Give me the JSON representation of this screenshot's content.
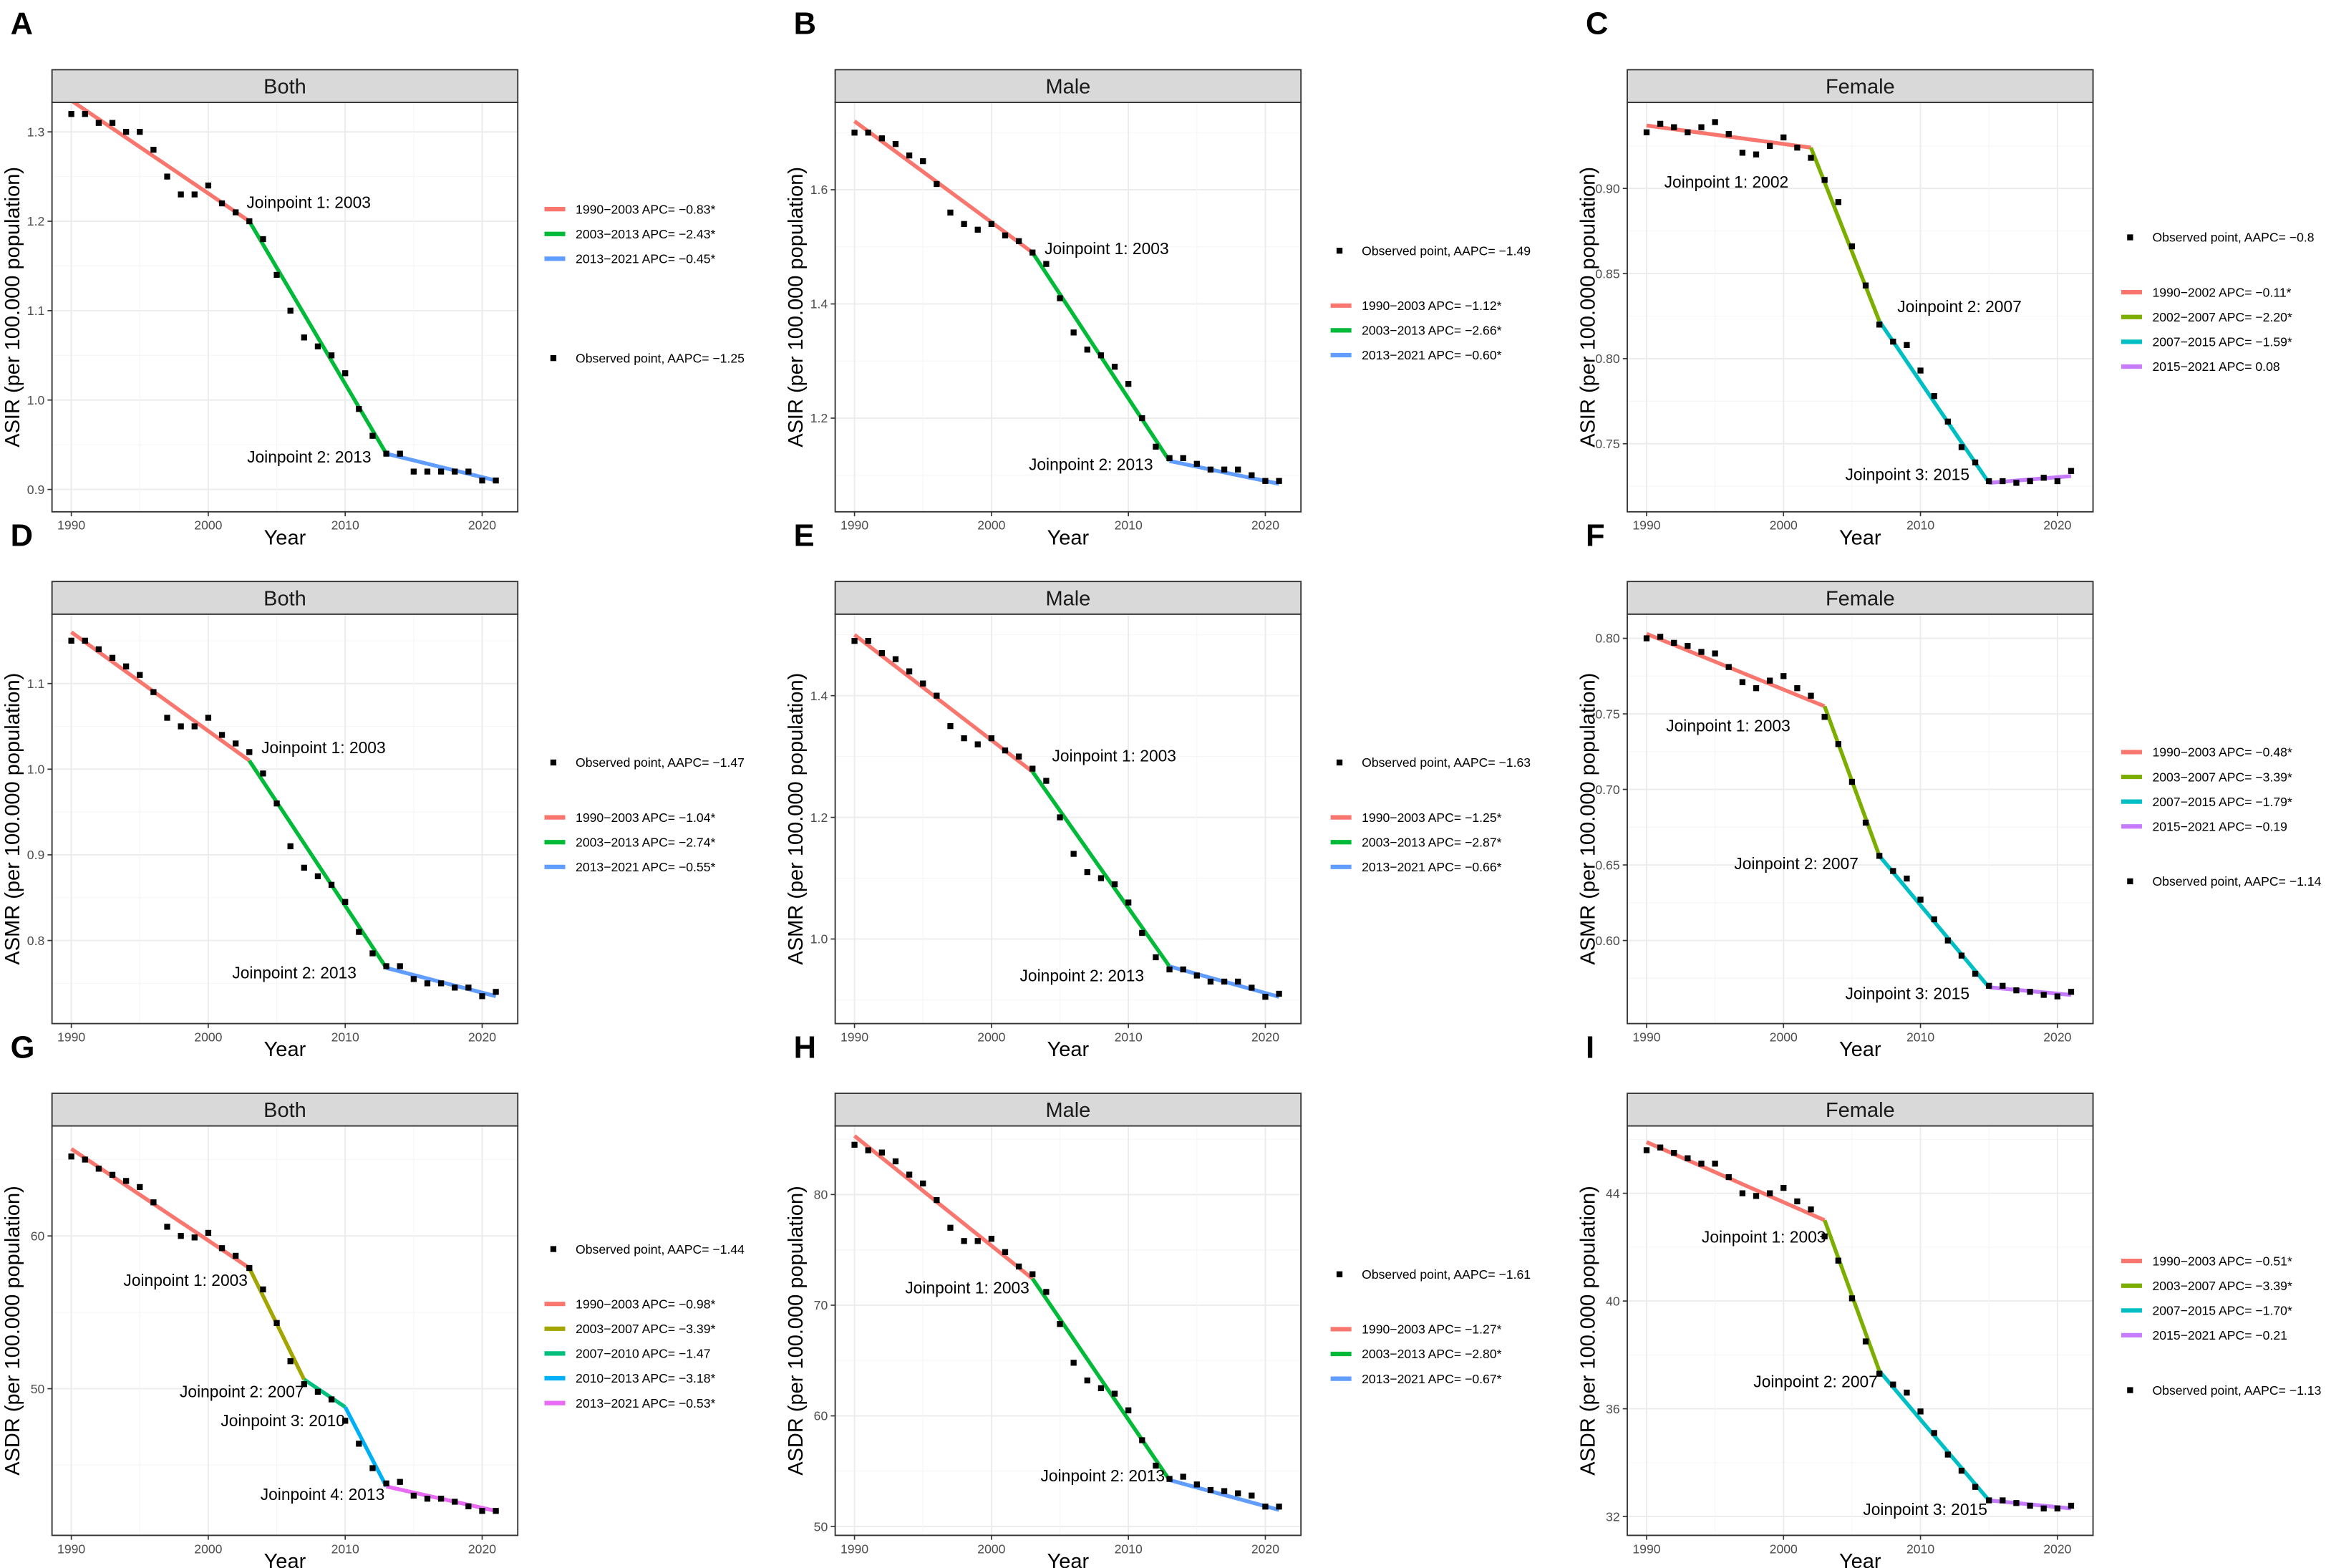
{
  "chart_data": [
    {
      "letter": "A",
      "type": "line",
      "strip": "Both",
      "xlabel": "Year",
      "ylabel": "ASIR (per 100.000 population)",
      "ylim": [
        0.875,
        1.333
      ],
      "yticks": [
        0.9,
        1.0,
        1.1,
        1.2,
        1.3
      ],
      "ytick_labels": [
        "0.9",
        "1.0",
        "1.1",
        "1.2",
        "1.3"
      ],
      "xticks": [
        1990,
        2000,
        2010,
        2020
      ],
      "xtick_labels": [
        "1990",
        "2000",
        "2010",
        "2020"
      ],
      "legend_order": "segments-first",
      "observed_legend": "Observed point, AAPC= −1.25",
      "observed": [
        1.32,
        1.32,
        1.31,
        1.31,
        1.3,
        1.3,
        1.28,
        1.25,
        1.23,
        1.23,
        1.24,
        1.22,
        1.21,
        1.2,
        1.18,
        1.14,
        1.1,
        1.07,
        1.06,
        1.05,
        1.03,
        0.99,
        0.96,
        0.94,
        0.94,
        0.92,
        0.92,
        0.92,
        0.92,
        0.92,
        0.91,
        0.91
      ],
      "segments": [
        {
          "label": "1990−2003 APC= −0.83*",
          "x": [
            1990,
            2003
          ],
          "y": [
            1.335,
            1.2
          ],
          "color": "#F8766D"
        },
        {
          "label": "2003−2013 APC= −2.43*",
          "x": [
            2003,
            2013
          ],
          "y": [
            1.2,
            0.94
          ],
          "color": "#00BA38"
        },
        {
          "label": "2013−2021 APC= −0.45*",
          "x": [
            2013,
            2021
          ],
          "y": [
            0.94,
            0.91
          ],
          "color": "#619CFF"
        }
      ],
      "joinpoints": [
        "Joinpoint 1: 2003",
        "Joinpoint 2: 2013"
      ]
    },
    {
      "letter": "B",
      "type": "line",
      "strip": "Male",
      "xlabel": "Year",
      "ylabel": "ASIR (per 100.000 population)",
      "ylim": [
        1.036,
        1.753
      ],
      "yticks": [
        1.2,
        1.4,
        1.6
      ],
      "ytick_labels": [
        "1.2",
        "1.4",
        "1.6"
      ],
      "xticks": [
        1990,
        2000,
        2010,
        2020
      ],
      "xtick_labels": [
        "1990",
        "2000",
        "2010",
        "2020"
      ],
      "legend_order": "observed-first",
      "observed_legend": "Observed point, AAPC= −1.49",
      "observed": [
        1.7,
        1.7,
        1.69,
        1.68,
        1.66,
        1.65,
        1.61,
        1.56,
        1.54,
        1.53,
        1.54,
        1.52,
        1.51,
        1.49,
        1.47,
        1.41,
        1.35,
        1.32,
        1.31,
        1.29,
        1.26,
        1.2,
        1.15,
        1.13,
        1.13,
        1.12,
        1.11,
        1.11,
        1.11,
        1.1,
        1.09,
        1.09
      ],
      "segments": [
        {
          "label": "1990−2003 APC= −1.12*",
          "x": [
            1990,
            2003
          ],
          "y": [
            1.72,
            1.49
          ],
          "color": "#F8766D"
        },
        {
          "label": "2003−2013 APC= −2.66*",
          "x": [
            2003,
            2013
          ],
          "y": [
            1.49,
            1.125
          ],
          "color": "#00BA38"
        },
        {
          "label": "2013−2021 APC= −0.60*",
          "x": [
            2013,
            2021
          ],
          "y": [
            1.125,
            1.085
          ],
          "color": "#619CFF"
        }
      ],
      "joinpoints": [
        "Joinpoint 1: 2003",
        "Joinpoint 2: 2013"
      ]
    },
    {
      "letter": "C",
      "type": "line",
      "strip": "Female",
      "xlabel": "Year",
      "ylabel": "ASIR (per 100.000 population)",
      "ylim": [
        0.71,
        0.9506
      ],
      "yticks": [
        0.75,
        0.8,
        0.85,
        0.9
      ],
      "ytick_labels": [
        "0.75",
        "0.80",
        "0.85",
        "0.90"
      ],
      "xticks": [
        1990,
        2000,
        2010,
        2020
      ],
      "xtick_labels": [
        "1990",
        "2000",
        "2010",
        "2020"
      ],
      "legend_order": "observed-first",
      "observed_legend": "Observed point, AAPC= −0.8",
      "observed": [
        0.933,
        0.938,
        0.936,
        0.933,
        0.936,
        0.939,
        0.932,
        0.921,
        0.92,
        0.925,
        0.93,
        0.924,
        0.918,
        0.905,
        0.892,
        0.866,
        0.843,
        0.82,
        0.81,
        0.808,
        0.793,
        0.778,
        0.763,
        0.748,
        0.739,
        0.728,
        0.728,
        0.727,
        0.728,
        0.73,
        0.728,
        0.734
      ],
      "segments": [
        {
          "label": "1990−2002 APC= −0.11*",
          "x": [
            1990,
            2002
          ],
          "y": [
            0.937,
            0.924
          ],
          "color": "#F8766D"
        },
        {
          "label": "2002−2007 APC= −2.20*",
          "x": [
            2002,
            2007
          ],
          "y": [
            0.924,
            0.822
          ],
          "color": "#7CAE00"
        },
        {
          "label": "2007−2015 APC= −1.59*",
          "x": [
            2007,
            2015
          ],
          "y": [
            0.822,
            0.727
          ],
          "color": "#00BFC4"
        },
        {
          "label": "2015−2021 APC= 0.08",
          "x": [
            2015,
            2021
          ],
          "y": [
            0.727,
            0.731
          ],
          "color": "#C77CFF"
        }
      ],
      "joinpoints": [
        "Joinpoint 1: 2002",
        "Joinpoint 2: 2007",
        "Joinpoint 3: 2015"
      ]
    },
    {
      "letter": "D",
      "type": "line",
      "strip": "Both",
      "xlabel": "Year",
      "ylabel": "ASMR (per 100.000 population)",
      "ylim": [
        0.703,
        1.181
      ],
      "yticks": [
        0.8,
        0.9,
        1.0,
        1.1
      ],
      "ytick_labels": [
        "0.8",
        "0.9",
        "1.0",
        "1.1"
      ],
      "xticks": [
        1990,
        2000,
        2010,
        2020
      ],
      "xtick_labels": [
        "1990",
        "2000",
        "2010",
        "2020"
      ],
      "legend_order": "observed-first",
      "observed_legend": "Observed point, AAPC= −1.47",
      "observed": [
        1.15,
        1.15,
        1.14,
        1.13,
        1.12,
        1.11,
        1.09,
        1.06,
        1.05,
        1.05,
        1.06,
        1.04,
        1.03,
        1.02,
        0.995,
        0.96,
        0.91,
        0.885,
        0.875,
        0.865,
        0.845,
        0.81,
        0.785,
        0.77,
        0.77,
        0.755,
        0.75,
        0.75,
        0.745,
        0.745,
        0.735,
        0.74
      ],
      "segments": [
        {
          "label": "1990−2003 APC= −1.04*",
          "x": [
            1990,
            2003
          ],
          "y": [
            1.16,
            1.01
          ],
          "color": "#F8766D"
        },
        {
          "label": "2003−2013 APC= −2.74*",
          "x": [
            2003,
            2013
          ],
          "y": [
            1.01,
            0.768
          ],
          "color": "#00BA38"
        },
        {
          "label": "2013−2021 APC= −0.55*",
          "x": [
            2013,
            2021
          ],
          "y": [
            0.768,
            0.735
          ],
          "color": "#619CFF"
        }
      ],
      "joinpoints": [
        "Joinpoint 1: 2003",
        "Joinpoint 2: 2013"
      ]
    },
    {
      "letter": "E",
      "type": "line",
      "strip": "Male",
      "xlabel": "Year",
      "ylabel": "ASMR (per 100.000 population)",
      "ylim": [
        0.861,
        1.534
      ],
      "yticks": [
        1.0,
        1.2,
        1.4
      ],
      "ytick_labels": [
        "1.0",
        "1.2",
        "1.4"
      ],
      "xticks": [
        1990,
        2000,
        2010,
        2020
      ],
      "xtick_labels": [
        "1990",
        "2000",
        "2010",
        "2020"
      ],
      "legend_order": "observed-first",
      "observed_legend": "Observed point, AAPC= −1.63",
      "observed": [
        1.49,
        1.49,
        1.47,
        1.46,
        1.44,
        1.42,
        1.4,
        1.35,
        1.33,
        1.32,
        1.33,
        1.31,
        1.3,
        1.28,
        1.26,
        1.2,
        1.14,
        1.11,
        1.1,
        1.09,
        1.06,
        1.01,
        0.97,
        0.95,
        0.95,
        0.94,
        0.93,
        0.93,
        0.93,
        0.92,
        0.905,
        0.91
      ],
      "segments": [
        {
          "label": "1990−2003 APC= −1.25*",
          "x": [
            1990,
            2003
          ],
          "y": [
            1.5,
            1.275
          ],
          "color": "#F8766D"
        },
        {
          "label": "2003−2013 APC= −2.87*",
          "x": [
            2003,
            2013
          ],
          "y": [
            1.275,
            0.955
          ],
          "color": "#00BA38"
        },
        {
          "label": "2013−2021 APC= −0.66*",
          "x": [
            2013,
            2021
          ],
          "y": [
            0.955,
            0.905
          ],
          "color": "#619CFF"
        }
      ],
      "joinpoints": [
        "Joinpoint 1: 2003",
        "Joinpoint 2: 2013"
      ]
    },
    {
      "letter": "F",
      "type": "line",
      "strip": "Female",
      "xlabel": "Year",
      "ylabel": "ASMR (per 100.000 population)",
      "ylim": [
        0.545,
        0.816
      ],
      "yticks": [
        0.6,
        0.65,
        0.7,
        0.75,
        0.8
      ],
      "ytick_labels": [
        "0.60",
        "0.65",
        "0.70",
        "0.75",
        "0.80"
      ],
      "xticks": [
        1990,
        2000,
        2010,
        2020
      ],
      "xtick_labels": [
        "1990",
        "2000",
        "2010",
        "2020"
      ],
      "legend_order": "segments-first",
      "observed_legend": "Observed point, AAPC= −1.14",
      "observed": [
        0.8,
        0.801,
        0.797,
        0.795,
        0.791,
        0.79,
        0.781,
        0.771,
        0.767,
        0.772,
        0.775,
        0.767,
        0.762,
        0.748,
        0.73,
        0.705,
        0.678,
        0.656,
        0.646,
        0.641,
        0.627,
        0.614,
        0.6,
        0.59,
        0.578,
        0.57,
        0.57,
        0.567,
        0.566,
        0.564,
        0.563,
        0.566
      ],
      "segments": [
        {
          "label": "1990−2003 APC= −0.48*",
          "x": [
            1990,
            2003
          ],
          "y": [
            0.803,
            0.755
          ],
          "color": "#F8766D"
        },
        {
          "label": "2003−2007 APC= −3.39*",
          "x": [
            2003,
            2007
          ],
          "y": [
            0.755,
            0.656
          ],
          "color": "#7CAE00"
        },
        {
          "label": "2007−2015 APC= −1.79*",
          "x": [
            2007,
            2015
          ],
          "y": [
            0.656,
            0.569
          ],
          "color": "#00BFC4"
        },
        {
          "label": "2015−2021 APC= −0.19",
          "x": [
            2015,
            2021
          ],
          "y": [
            0.569,
            0.564
          ],
          "color": "#C77CFF"
        }
      ],
      "joinpoints": [
        "Joinpoint 1: 2003",
        "Joinpoint 2: 2007",
        "Joinpoint 3: 2015"
      ]
    },
    {
      "letter": "G",
      "type": "line",
      "strip": "Both",
      "xlabel": "Year",
      "ylabel": "ASDR (per 100.000 population)",
      "ylim": [
        40.4,
        67.2
      ],
      "yticks": [
        50,
        60
      ],
      "ytick_labels": [
        "50",
        "60"
      ],
      "xticks": [
        1990,
        2000,
        2010,
        2020
      ],
      "xtick_labels": [
        "1990",
        "2000",
        "2010",
        "2020"
      ],
      "legend_order": "observed-first",
      "observed_legend": "Observed point, AAPC= −1.44",
      "observed": [
        65.2,
        65.0,
        64.4,
        64.0,
        63.6,
        63.2,
        62.2,
        60.6,
        60.0,
        59.9,
        60.2,
        59.2,
        58.7,
        57.9,
        56.5,
        54.3,
        51.8,
        50.3,
        49.8,
        49.3,
        47.9,
        46.4,
        44.8,
        43.8,
        43.9,
        43.0,
        42.8,
        42.8,
        42.6,
        42.3,
        42.0,
        42.0
      ],
      "segments": [
        {
          "label": "1990−2003 APC= −0.98*",
          "x": [
            1990,
            2003
          ],
          "y": [
            65.7,
            57.9
          ],
          "color": "#F8766D"
        },
        {
          "label": "2003−2007 APC= −3.39*",
          "x": [
            2003,
            2007
          ],
          "y": [
            57.9,
            50.6
          ],
          "color": "#A3A500"
        },
        {
          "label": "2007−2010 APC= −1.47",
          "x": [
            2007,
            2010
          ],
          "y": [
            50.6,
            48.8
          ],
          "color": "#00BF7D"
        },
        {
          "label": "2010−2013 APC= −3.18*",
          "x": [
            2010,
            2013
          ],
          "y": [
            48.8,
            43.6
          ],
          "color": "#00B0F6"
        },
        {
          "label": "2013−2021 APC= −0.53*",
          "x": [
            2013,
            2021
          ],
          "y": [
            43.6,
            42.0
          ],
          "color": "#E76BF3"
        }
      ],
      "joinpoints": [
        "Joinpoint 1: 2003",
        "Joinpoint 2: 2007",
        "Joinpoint 3: 2010",
        "Joinpoint 4: 2013"
      ]
    },
    {
      "letter": "H",
      "type": "line",
      "strip": "Male",
      "xlabel": "Year",
      "ylabel": "ASDR (per 100.000 population)",
      "ylim": [
        49.2,
        86.2
      ],
      "yticks": [
        50,
        60,
        70,
        80
      ],
      "ytick_labels": [
        "50",
        "60",
        "70",
        "80"
      ],
      "xticks": [
        1990,
        2000,
        2010,
        2020
      ],
      "xtick_labels": [
        "1990",
        "2000",
        "2010",
        "2020"
      ],
      "legend_order": "observed-first",
      "observed_legend": "Observed point, AAPC= −1.61",
      "observed": [
        84.5,
        84.0,
        83.8,
        83.0,
        81.8,
        81.0,
        79.5,
        77.0,
        75.8,
        75.8,
        76.0,
        74.8,
        73.5,
        72.8,
        71.2,
        68.3,
        64.8,
        63.2,
        62.5,
        62.0,
        60.5,
        57.8,
        55.5,
        54.3,
        54.5,
        53.8,
        53.3,
        53.2,
        53.0,
        52.8,
        51.8,
        51.8
      ],
      "segments": [
        {
          "label": "1990−2003 APC= −1.27*",
          "x": [
            1990,
            2003
          ],
          "y": [
            85.3,
            72.4
          ],
          "color": "#F8766D"
        },
        {
          "label": "2003−2013 APC= −2.80*",
          "x": [
            2003,
            2013
          ],
          "y": [
            72.4,
            54.2
          ],
          "color": "#00BA38"
        },
        {
          "label": "2013−2021 APC= −0.67*",
          "x": [
            2013,
            2021
          ],
          "y": [
            54.2,
            51.5
          ],
          "color": "#619CFF"
        }
      ],
      "joinpoints": [
        "Joinpoint 1: 2003",
        "Joinpoint 2: 2013"
      ]
    },
    {
      "letter": "I",
      "type": "line",
      "strip": "Female",
      "xlabel": "Year",
      "ylabel": "ASDR (per 100.000 population)",
      "ylim": [
        31.3,
        46.5
      ],
      "yticks": [
        32,
        36,
        40,
        44
      ],
      "ytick_labels": [
        "32",
        "36",
        "40",
        "44"
      ],
      "xticks": [
        1990,
        2000,
        2010,
        2020
      ],
      "xtick_labels": [
        "1990",
        "2000",
        "2010",
        "2020"
      ],
      "legend_order": "segments-first",
      "observed_legend": "Observed point, AAPC= −1.13",
      "observed": [
        45.6,
        45.7,
        45.5,
        45.3,
        45.1,
        45.1,
        44.6,
        44.0,
        43.9,
        44.0,
        44.2,
        43.7,
        43.4,
        42.4,
        41.5,
        40.1,
        38.5,
        37.3,
        36.9,
        36.6,
        35.9,
        35.1,
        34.3,
        33.7,
        33.1,
        32.6,
        32.6,
        32.5,
        32.4,
        32.3,
        32.3,
        32.4
      ],
      "segments": [
        {
          "label": "1990−2003 APC= −0.51*",
          "x": [
            1990,
            2003
          ],
          "y": [
            45.9,
            43.0
          ],
          "color": "#F8766D"
        },
        {
          "label": "2003−2007 APC= −3.39*",
          "x": [
            2003,
            2007
          ],
          "y": [
            43.0,
            37.4
          ],
          "color": "#7CAE00"
        },
        {
          "label": "2007−2015 APC= −1.70*",
          "x": [
            2007,
            2015
          ],
          "y": [
            37.4,
            32.6
          ],
          "color": "#00BFC4"
        },
        {
          "label": "2015−2021 APC= −0.21",
          "x": [
            2015,
            2021
          ],
          "y": [
            32.6,
            32.3
          ],
          "color": "#C77CFF"
        }
      ],
      "joinpoints": [
        "Joinpoint 1: 2003",
        "Joinpoint 2: 2007",
        "Joinpoint 3: 2015"
      ]
    }
  ],
  "years_start": 1990
}
